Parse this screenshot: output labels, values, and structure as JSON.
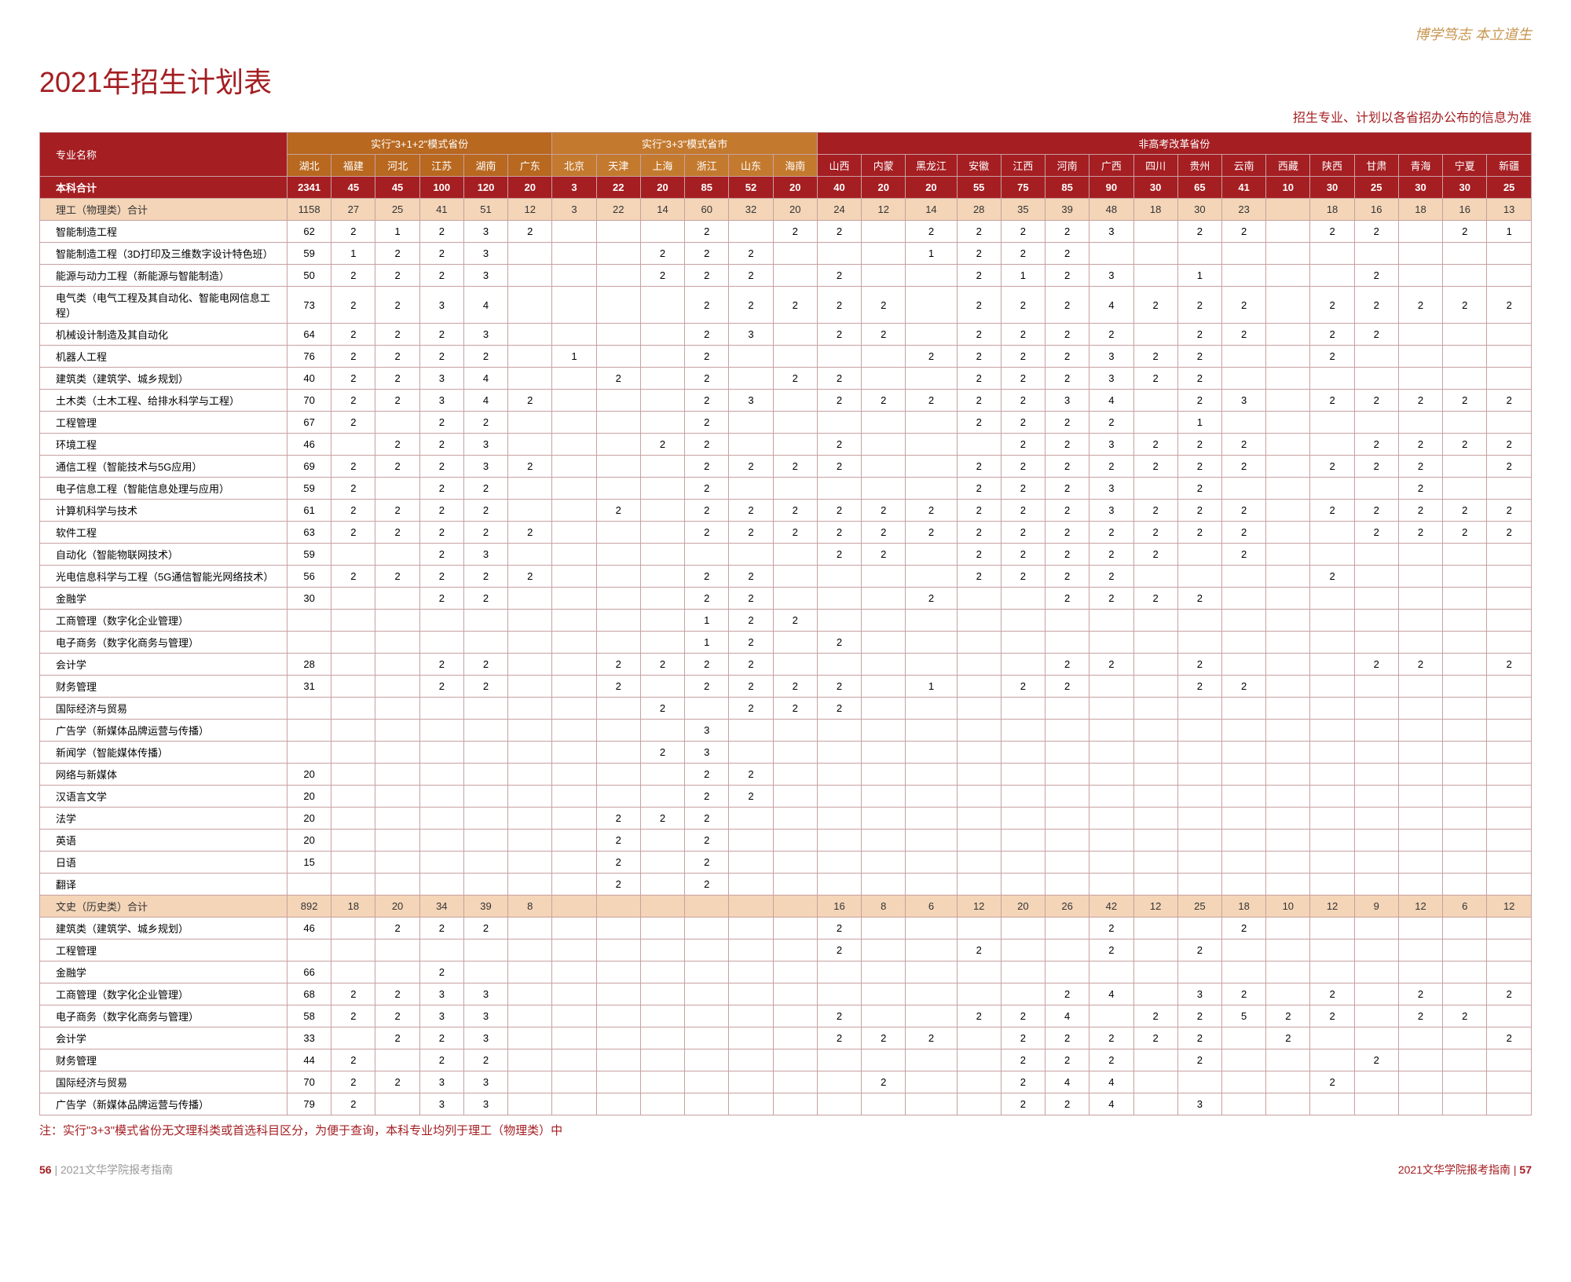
{
  "motto": "博学笃志 本立道生",
  "title": "2021年招生计划表",
  "subtitle": "招生专业、计划以各省招办公布的信息为准",
  "note": "注：实行\"3+3\"模式省份无文理科类或首选科目区分，为便于查询，本科专业均列于理工（物理类）中",
  "footer_left_page": "56",
  "footer_left_text": "2021文华学院报考指南",
  "footer_right_text": "2021文华学院报考指南",
  "footer_right_page": "57",
  "group_headers": {
    "major": "专业名称",
    "g312": "实行\"3+1+2\"模式省份",
    "g33": "实行\"3+3\"模式省市",
    "gnon": "非高考改革省份"
  },
  "provinces": [
    "湖北",
    "福建",
    "河北",
    "江苏",
    "湖南",
    "广东",
    "北京",
    "天津",
    "上海",
    "浙江",
    "山东",
    "海南",
    "山西",
    "内蒙",
    "黑龙江",
    "安徽",
    "江西",
    "河南",
    "广西",
    "四川",
    "贵州",
    "云南",
    "西藏",
    "陕西",
    "甘肃",
    "青海",
    "宁夏",
    "新疆"
  ],
  "total_label": "本科合计",
  "total": [
    "2341",
    "45",
    "45",
    "100",
    "120",
    "20",
    "3",
    "22",
    "20",
    "85",
    "52",
    "20",
    "40",
    "20",
    "20",
    "55",
    "75",
    "85",
    "90",
    "30",
    "65",
    "41",
    "10",
    "30",
    "25",
    "30",
    "30",
    "25"
  ],
  "sci_label": "理工（物理类）合计",
  "sci_total": [
    "1158",
    "27",
    "25",
    "41",
    "51",
    "12",
    "3",
    "22",
    "14",
    "60",
    "32",
    "20",
    "24",
    "12",
    "14",
    "28",
    "35",
    "39",
    "48",
    "18",
    "30",
    "23",
    "",
    "18",
    "16",
    "18",
    "16",
    "13"
  ],
  "sci_rows": [
    {
      "n": "智能制造工程",
      "v": [
        "62",
        "2",
        "1",
        "2",
        "3",
        "2",
        "",
        "",
        "",
        "2",
        "",
        "2",
        "2",
        "",
        "2",
        "2",
        "2",
        "2",
        "3",
        "",
        "2",
        "2",
        "",
        "2",
        "2",
        "",
        "2",
        "1"
      ]
    },
    {
      "n": "智能制造工程（3D打印及三维数字设计特色班）",
      "v": [
        "59",
        "1",
        "2",
        "2",
        "3",
        "",
        "",
        "",
        "2",
        "2",
        "2",
        "",
        "",
        "",
        "1",
        "2",
        "2",
        "2",
        "",
        "",
        "",
        "",
        "",
        "",
        "",
        "",
        "",
        ""
      ]
    },
    {
      "n": "能源与动力工程（新能源与智能制造）",
      "v": [
        "50",
        "2",
        "2",
        "2",
        "3",
        "",
        "",
        "",
        "2",
        "2",
        "2",
        "",
        "2",
        "",
        "",
        "2",
        "1",
        "2",
        "3",
        "",
        "1",
        "",
        "",
        "",
        "2",
        "",
        "",
        ""
      ]
    },
    {
      "n": "电气类（电气工程及其自动化、智能电网信息工程）",
      "v": [
        "73",
        "2",
        "2",
        "3",
        "4",
        "",
        "",
        "",
        "",
        "2",
        "2",
        "2",
        "2",
        "2",
        "",
        "2",
        "2",
        "2",
        "4",
        "2",
        "2",
        "2",
        "",
        "2",
        "2",
        "2",
        "2",
        "2"
      ]
    },
    {
      "n": "机械设计制造及其自动化",
      "v": [
        "64",
        "2",
        "2",
        "2",
        "3",
        "",
        "",
        "",
        "",
        "2",
        "3",
        "",
        "2",
        "2",
        "",
        "2",
        "2",
        "2",
        "2",
        "",
        "2",
        "2",
        "",
        "2",
        "2",
        "",
        "",
        ""
      ]
    },
    {
      "n": "机器人工程",
      "v": [
        "76",
        "2",
        "2",
        "2",
        "2",
        "",
        "1",
        "",
        "",
        "2",
        "",
        "",
        "",
        "",
        "2",
        "2",
        "2",
        "2",
        "3",
        "2",
        "2",
        "",
        "",
        "2",
        "",
        "",
        "",
        ""
      ]
    },
    {
      "n": "建筑类（建筑学、城乡规划）",
      "v": [
        "40",
        "2",
        "2",
        "3",
        "4",
        "",
        "",
        "2",
        "",
        "2",
        "",
        "2",
        "2",
        "",
        "",
        "2",
        "2",
        "2",
        "3",
        "2",
        "2",
        "",
        "",
        "",
        "",
        "",
        "",
        ""
      ]
    },
    {
      "n": "土木类（土木工程、给排水科学与工程）",
      "v": [
        "70",
        "2",
        "2",
        "3",
        "4",
        "2",
        "",
        "",
        "",
        "2",
        "3",
        "",
        "2",
        "2",
        "2",
        "2",
        "2",
        "3",
        "4",
        "",
        "2",
        "3",
        "",
        "2",
        "2",
        "2",
        "2",
        "2"
      ]
    },
    {
      "n": "工程管理",
      "v": [
        "67",
        "2",
        "",
        "2",
        "2",
        "",
        "",
        "",
        "",
        "2",
        "",
        "",
        "",
        "",
        "",
        "2",
        "2",
        "2",
        "2",
        "",
        "1",
        "",
        "",
        "",
        "",
        "",
        "",
        ""
      ]
    },
    {
      "n": "环境工程",
      "v": [
        "46",
        "",
        "2",
        "2",
        "3",
        "",
        "",
        "",
        "2",
        "2",
        "",
        "",
        "2",
        "",
        "",
        "",
        "2",
        "2",
        "3",
        "2",
        "2",
        "2",
        "",
        "",
        "2",
        "2",
        "2",
        "2"
      ]
    },
    {
      "n": "通信工程（智能技术与5G应用）",
      "v": [
        "69",
        "2",
        "2",
        "2",
        "3",
        "2",
        "",
        "",
        "",
        "2",
        "2",
        "2",
        "2",
        "",
        "",
        "2",
        "2",
        "2",
        "2",
        "2",
        "2",
        "2",
        "",
        "2",
        "2",
        "2",
        "",
        "2"
      ]
    },
    {
      "n": "电子信息工程（智能信息处理与应用）",
      "v": [
        "59",
        "2",
        "",
        "2",
        "2",
        "",
        "",
        "",
        "",
        "2",
        "",
        "",
        "",
        "",
        "",
        "2",
        "2",
        "2",
        "3",
        "",
        "2",
        "",
        "",
        "",
        "",
        "2",
        "",
        ""
      ]
    },
    {
      "n": "计算机科学与技术",
      "v": [
        "61",
        "2",
        "2",
        "2",
        "2",
        "",
        "",
        "2",
        "",
        "2",
        "2",
        "2",
        "2",
        "2",
        "2",
        "2",
        "2",
        "2",
        "3",
        "2",
        "2",
        "2",
        "",
        "2",
        "2",
        "2",
        "2",
        "2"
      ]
    },
    {
      "n": "软件工程",
      "v": [
        "63",
        "2",
        "2",
        "2",
        "2",
        "2",
        "",
        "",
        "",
        "2",
        "2",
        "2",
        "2",
        "2",
        "2",
        "2",
        "2",
        "2",
        "2",
        "2",
        "2",
        "2",
        "",
        "",
        "2",
        "2",
        "2",
        "2"
      ]
    },
    {
      "n": "自动化（智能物联网技术）",
      "v": [
        "59",
        "",
        "",
        "2",
        "3",
        "",
        "",
        "",
        "",
        "",
        "",
        "",
        "2",
        "2",
        "",
        "2",
        "2",
        "2",
        "2",
        "2",
        "",
        "2",
        "",
        "",
        "",
        "",
        "",
        ""
      ]
    },
    {
      "n": "光电信息科学与工程（5G通信智能光网络技术）",
      "v": [
        "56",
        "2",
        "2",
        "2",
        "2",
        "2",
        "",
        "",
        "",
        "2",
        "2",
        "",
        "",
        "",
        "",
        "2",
        "2",
        "2",
        "2",
        "",
        "",
        "",
        "",
        "2",
        "",
        "",
        "",
        ""
      ]
    },
    {
      "n": "金融学",
      "v": [
        "30",
        "",
        "",
        "2",
        "2",
        "",
        "",
        "",
        "",
        "2",
        "2",
        "",
        "",
        "",
        "2",
        "",
        "",
        "2",
        "2",
        "2",
        "2",
        "",
        "",
        "",
        "",
        "",
        "",
        ""
      ]
    },
    {
      "n": "工商管理（数字化企业管理）",
      "v": [
        "",
        "",
        "",
        "",
        "",
        "",
        "",
        "",
        "",
        "1",
        "2",
        "2",
        "",
        "",
        "",
        "",
        "",
        "",
        "",
        "",
        "",
        "",
        "",
        "",
        "",
        "",
        "",
        ""
      ]
    },
    {
      "n": "电子商务（数字化商务与管理）",
      "v": [
        "",
        "",
        "",
        "",
        "",
        "",
        "",
        "",
        "",
        "1",
        "2",
        "",
        "2",
        "",
        "",
        "",
        "",
        "",
        "",
        "",
        "",
        "",
        "",
        "",
        "",
        "",
        "",
        ""
      ]
    },
    {
      "n": "会计学",
      "v": [
        "28",
        "",
        "",
        "2",
        "2",
        "",
        "",
        "2",
        "2",
        "2",
        "2",
        "",
        "",
        "",
        "",
        "",
        "",
        "2",
        "2",
        "",
        "2",
        "",
        "",
        "",
        "2",
        "2",
        "",
        "2"
      ]
    },
    {
      "n": "财务管理",
      "v": [
        "31",
        "",
        "",
        "2",
        "2",
        "",
        "",
        "2",
        "",
        "2",
        "2",
        "2",
        "2",
        "",
        "1",
        "",
        "2",
        "2",
        "",
        "",
        "2",
        "2",
        "",
        "",
        "",
        "",
        "",
        ""
      ]
    },
    {
      "n": "国际经济与贸易",
      "v": [
        "",
        "",
        "",
        "",
        "",
        "",
        "",
        "",
        "2",
        "",
        "2",
        "2",
        "2",
        "",
        "",
        "",
        "",
        "",
        "",
        "",
        "",
        "",
        "",
        "",
        "",
        "",
        "",
        ""
      ]
    },
    {
      "n": "广告学（新媒体品牌运营与传播）",
      "v": [
        "",
        "",
        "",
        "",
        "",
        "",
        "",
        "",
        "",
        "3",
        "",
        "",
        "",
        "",
        "",
        "",
        "",
        "",
        "",
        "",
        "",
        "",
        "",
        "",
        "",
        "",
        "",
        ""
      ]
    },
    {
      "n": "新闻学（智能媒体传播）",
      "v": [
        "",
        "",
        "",
        "",
        "",
        "",
        "",
        "",
        "2",
        "3",
        "",
        "",
        "",
        "",
        "",
        "",
        "",
        "",
        "",
        "",
        "",
        "",
        "",
        "",
        "",
        "",
        "",
        ""
      ]
    },
    {
      "n": "网络与新媒体",
      "v": [
        "20",
        "",
        "",
        "",
        "",
        "",
        "",
        "",
        "",
        "2",
        "2",
        "",
        "",
        "",
        "",
        "",
        "",
        "",
        "",
        "",
        "",
        "",
        "",
        "",
        "",
        "",
        "",
        ""
      ]
    },
    {
      "n": "汉语言文学",
      "v": [
        "20",
        "",
        "",
        "",
        "",
        "",
        "",
        "",
        "",
        "2",
        "2",
        "",
        "",
        "",
        "",
        "",
        "",
        "",
        "",
        "",
        "",
        "",
        "",
        "",
        "",
        "",
        "",
        ""
      ]
    },
    {
      "n": "法学",
      "v": [
        "20",
        "",
        "",
        "",
        "",
        "",
        "",
        "2",
        "2",
        "2",
        "",
        "",
        "",
        "",
        "",
        "",
        "",
        "",
        "",
        "",
        "",
        "",
        "",
        "",
        "",
        "",
        "",
        ""
      ]
    },
    {
      "n": "英语",
      "v": [
        "20",
        "",
        "",
        "",
        "",
        "",
        "",
        "2",
        "",
        "2",
        "",
        "",
        "",
        "",
        "",
        "",
        "",
        "",
        "",
        "",
        "",
        "",
        "",
        "",
        "",
        "",
        "",
        ""
      ]
    },
    {
      "n": "日语",
      "v": [
        "15",
        "",
        "",
        "",
        "",
        "",
        "",
        "2",
        "",
        "2",
        "",
        "",
        "",
        "",
        "",
        "",
        "",
        "",
        "",
        "",
        "",
        "",
        "",
        "",
        "",
        "",
        "",
        ""
      ]
    },
    {
      "n": "翻译",
      "v": [
        "",
        "",
        "",
        "",
        "",
        "",
        "",
        "2",
        "",
        "2",
        "",
        "",
        "",
        "",
        "",
        "",
        "",
        "",
        "",
        "",
        "",
        "",
        "",
        "",
        "",
        "",
        "",
        ""
      ]
    }
  ],
  "lib_label": "文史（历史类）合计",
  "lib_total": [
    "892",
    "18",
    "20",
    "34",
    "39",
    "8",
    "",
    "",
    "",
    "",
    "",
    "",
    "16",
    "8",
    "6",
    "12",
    "20",
    "26",
    "42",
    "12",
    "25",
    "18",
    "10",
    "12",
    "9",
    "12",
    "6",
    "12"
  ],
  "lib_rows": [
    {
      "n": "建筑类（建筑学、城乡规划）",
      "v": [
        "46",
        "",
        "2",
        "2",
        "2",
        "",
        "",
        "",
        "",
        "",
        "",
        "",
        "2",
        "",
        "",
        "",
        "",
        "",
        "2",
        "",
        "",
        "2",
        "",
        "",
        "",
        "",
        "",
        ""
      ]
    },
    {
      "n": "工程管理",
      "v": [
        "",
        "",
        "",
        "",
        "",
        "",
        "",
        "",
        "",
        "",
        "",
        "",
        "2",
        "",
        "",
        "2",
        "",
        "",
        "2",
        "",
        "2",
        "",
        "",
        "",
        "",
        "",
        "",
        ""
      ]
    },
    {
      "n": "金融学",
      "v": [
        "66",
        "",
        "",
        "2",
        "",
        "",
        "",
        "",
        "",
        "",
        "",
        "",
        "",
        "",
        "",
        "",
        "",
        "",
        "",
        "",
        "",
        "",
        "",
        "",
        "",
        "",
        "",
        ""
      ]
    },
    {
      "n": "工商管理（数字化企业管理）",
      "v": [
        "68",
        "2",
        "2",
        "3",
        "3",
        "",
        "",
        "",
        "",
        "",
        "",
        "",
        "",
        "",
        "",
        "",
        "",
        "2",
        "4",
        "",
        "3",
        "2",
        "",
        "2",
        "",
        "2",
        "",
        "2"
      ]
    },
    {
      "n": "电子商务（数字化商务与管理）",
      "v": [
        "58",
        "2",
        "2",
        "3",
        "3",
        "",
        "",
        "",
        "",
        "",
        "",
        "",
        "2",
        "",
        "",
        "2",
        "2",
        "4",
        "",
        "2",
        "2",
        "5",
        "2",
        "2",
        "",
        "2",
        "2",
        ""
      ]
    },
    {
      "n": "会计学",
      "v": [
        "33",
        "",
        "2",
        "2",
        "3",
        "",
        "",
        "",
        "",
        "",
        "",
        "",
        "2",
        "2",
        "2",
        "",
        "2",
        "2",
        "2",
        "2",
        "2",
        "",
        "2",
        "",
        "",
        "",
        "",
        "2"
      ]
    },
    {
      "n": "财务管理",
      "v": [
        "44",
        "2",
        "",
        "2",
        "2",
        "",
        "",
        "",
        "",
        "",
        "",
        "",
        "",
        "",
        "",
        "",
        "2",
        "2",
        "2",
        "",
        "2",
        "",
        "",
        "",
        "2",
        "",
        "",
        ""
      ]
    },
    {
      "n": "国际经济与贸易",
      "v": [
        "70",
        "2",
        "2",
        "3",
        "3",
        "",
        "",
        "",
        "",
        "",
        "",
        "",
        "",
        "2",
        "",
        "",
        "2",
        "4",
        "4",
        "",
        "",
        "",
        "",
        "2",
        "",
        "",
        "",
        ""
      ]
    },
    {
      "n": "广告学（新媒体品牌运营与传播）",
      "v": [
        "79",
        "2",
        "",
        "3",
        "3",
        "",
        "",
        "",
        "",
        "",
        "",
        "",
        "",
        "",
        "",
        "",
        "2",
        "2",
        "4",
        "",
        "3",
        "",
        "",
        "",
        "",
        "",
        "",
        ""
      ]
    }
  ],
  "colors": {
    "primary": "#a41e22",
    "orange1": "#b8681f",
    "orange2": "#c47a2e",
    "subtotal": "#f4d5b8",
    "border": "#c9a0a0",
    "motto": "#c89650"
  }
}
